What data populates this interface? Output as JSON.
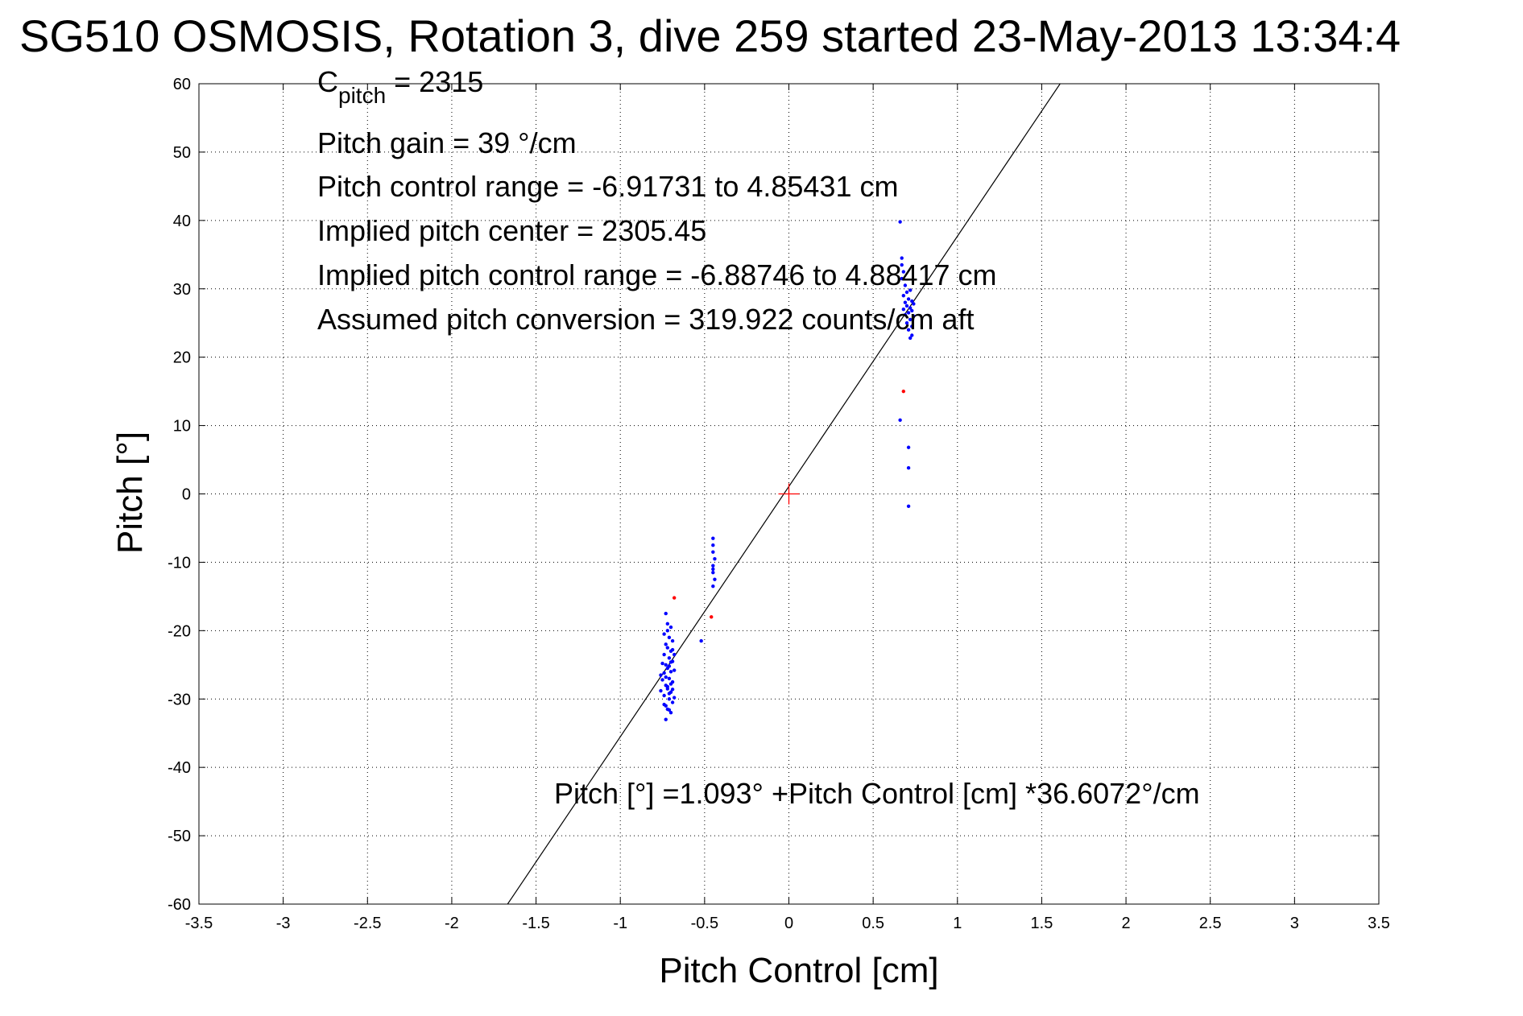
{
  "chart_data": {
    "type": "scatter",
    "title": "SG510 OSMOSIS, Rotation 3, dive 259 started 23-May-2013 13:34:4",
    "xlabel": "Pitch Control [cm]",
    "ylabel": "Pitch [°]",
    "xlim": [
      -3.5,
      3.5
    ],
    "ylim": [
      -60,
      60
    ],
    "x_ticks": [
      -3.5,
      -3,
      -2.5,
      -2,
      -1.5,
      -1,
      -0.5,
      0,
      0.5,
      1,
      1.5,
      2,
      2.5,
      3,
      3.5
    ],
    "x_tick_labels": [
      "-3.5",
      "-3",
      "-2.5",
      "-2",
      "-1.5",
      "-1",
      "-0.5",
      "0",
      "0.5",
      "1",
      "1.5",
      "2",
      "2.5",
      "3",
      "3.5"
    ],
    "y_ticks": [
      -60,
      -50,
      -40,
      -30,
      -20,
      -10,
      0,
      10,
      20,
      30,
      40,
      50,
      60
    ],
    "y_tick_labels": [
      "-60",
      "-50",
      "-40",
      "-30",
      "-20",
      "-10",
      "0",
      "10",
      "20",
      "30",
      "40",
      "50",
      "60"
    ],
    "grid": true,
    "annotations": {
      "c_pitch_main": "C",
      "c_pitch_sub": "pitch",
      "c_pitch_value": " = 2315",
      "pitch_gain": "Pitch gain = 39 °/cm",
      "pitch_control_range": "Pitch control range = -6.91731 to 4.85431 cm",
      "implied_pitch_center": "Implied pitch center = 2305.45",
      "implied_pitch_control_range": "Implied pitch control range = -6.88746 to 4.88417 cm",
      "assumed_pitch_conversion": "Assumed pitch conversion = 319.922 counts/cm aft",
      "fit_equation": "Pitch [°] =1.093° +Pitch Control [cm] *36.6072°/cm"
    },
    "fit_line": {
      "intercept": 1.093,
      "slope": 36.6072,
      "color": "#000000"
    },
    "center_marker": {
      "x": 0,
      "y": 0,
      "color": "#ff0000"
    },
    "series": [
      {
        "color": "#0000ff",
        "points": [
          [
            -0.73,
            -17.5
          ],
          [
            -0.72,
            -19
          ],
          [
            -0.7,
            -19.5
          ],
          [
            -0.74,
            -20.5
          ],
          [
            -0.71,
            -21
          ],
          [
            -0.69,
            -21.5
          ],
          [
            -0.73,
            -22
          ],
          [
            -0.72,
            -22.5
          ],
          [
            -0.7,
            -23
          ],
          [
            -0.74,
            -23.5
          ],
          [
            -0.71,
            -24
          ],
          [
            -0.69,
            -24.5
          ],
          [
            -0.73,
            -25
          ],
          [
            -0.72,
            -25.5
          ],
          [
            -0.7,
            -26
          ],
          [
            -0.76,
            -26.5
          ],
          [
            -0.71,
            -27
          ],
          [
            -0.69,
            -27.5
          ],
          [
            -0.73,
            -28
          ],
          [
            -0.72,
            -28.5
          ],
          [
            -0.7,
            -29
          ],
          [
            -0.74,
            -29.5
          ],
          [
            -0.71,
            -30
          ],
          [
            -0.69,
            -30.5
          ],
          [
            -0.73,
            -31
          ],
          [
            -0.72,
            -31.5
          ],
          [
            -0.7,
            -32
          ],
          [
            -0.73,
            -33
          ],
          [
            -0.75,
            -24.8
          ],
          [
            -0.68,
            -25.8
          ],
          [
            -0.76,
            -28.8
          ],
          [
            -0.68,
            -23.5
          ],
          [
            -0.72,
            -20
          ],
          [
            -0.7,
            -27.8
          ],
          [
            -0.74,
            -30.8
          ],
          [
            -0.71,
            -25.2
          ],
          [
            -0.69,
            -22.8
          ],
          [
            -0.73,
            -26.8
          ],
          [
            -0.71,
            -29.2
          ],
          [
            -0.7,
            -24.6
          ],
          [
            -0.72,
            -28.2
          ],
          [
            -0.74,
            -26.2
          ],
          [
            -0.71,
            -31.6
          ],
          [
            -0.69,
            -28.6
          ],
          [
            -0.75,
            -27.2
          ],
          [
            -0.68,
            -29.8
          ],
          [
            -0.52,
            -21.5
          ],
          [
            -0.45,
            -6.5
          ],
          [
            -0.45,
            -7.5
          ],
          [
            -0.45,
            -8.5
          ],
          [
            -0.44,
            -9.5
          ],
          [
            -0.45,
            -10.5
          ],
          [
            -0.45,
            -11
          ],
          [
            -0.45,
            -11.5
          ],
          [
            -0.44,
            -12.5
          ],
          [
            -0.45,
            -13.5
          ],
          [
            0.66,
            39.8
          ],
          [
            0.67,
            34.5
          ],
          [
            0.67,
            33.5
          ],
          [
            0.68,
            32.5
          ],
          [
            0.67,
            31.5
          ],
          [
            0.69,
            30.5
          ],
          [
            0.7,
            29.5
          ],
          [
            0.72,
            29.8
          ],
          [
            0.68,
            29
          ],
          [
            0.71,
            28.5
          ],
          [
            0.73,
            28.2
          ],
          [
            0.69,
            28
          ],
          [
            0.74,
            27.8
          ],
          [
            0.7,
            27.5
          ],
          [
            0.72,
            27.2
          ],
          [
            0.68,
            27
          ],
          [
            0.73,
            26.8
          ],
          [
            0.71,
            26.5
          ],
          [
            0.69,
            26.2
          ],
          [
            0.74,
            26
          ],
          [
            0.72,
            25.5
          ],
          [
            0.7,
            25
          ],
          [
            0.73,
            24.5
          ],
          [
            0.71,
            24
          ],
          [
            0.73,
            23.2
          ],
          [
            0.72,
            22.8
          ],
          [
            0.66,
            10.8
          ],
          [
            0.71,
            6.8
          ],
          [
            0.71,
            3.8
          ],
          [
            0.71,
            -1.8
          ]
        ]
      },
      {
        "color": "#ff0000",
        "points": [
          [
            -0.68,
            -15.2
          ],
          [
            -0.46,
            -18
          ],
          [
            0.68,
            15
          ]
        ]
      }
    ]
  }
}
